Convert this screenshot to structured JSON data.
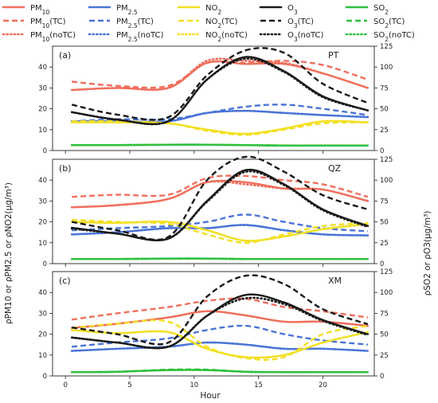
{
  "chart_data": {
    "type": "line",
    "xlabel": "Hour",
    "ylabel_left": "ρPM10 or ρPM2.5 or ρNO2(μg/m³)",
    "ylabel_right": "ρSO2 or ρO3(μg/m³)",
    "xticks": [
      0,
      5,
      10,
      15,
      20
    ],
    "xlim": [
      -1,
      24
    ],
    "left_ylim": [
      0,
      50
    ],
    "left_yticks": [
      0,
      10,
      20,
      30,
      40
    ],
    "right_ylim": [
      0,
      125
    ],
    "right_yticks": [
      0,
      25,
      50,
      75,
      100,
      125
    ],
    "grid": false,
    "legend": [
      {
        "label": "PM10",
        "pollutant": "PM10",
        "variant": "base"
      },
      {
        "label": "PM2.5",
        "pollutant": "PM25",
        "variant": "base"
      },
      {
        "label": "NO2",
        "pollutant": "NO2",
        "variant": "base"
      },
      {
        "label": "O3",
        "pollutant": "O3",
        "variant": "base"
      },
      {
        "label": "SO2",
        "pollutant": "SO2",
        "variant": "base"
      },
      {
        "label": "PM10(TC)",
        "pollutant": "PM10",
        "variant": "TC"
      },
      {
        "label": "PM2.5(TC)",
        "pollutant": "PM25",
        "variant": "TC"
      },
      {
        "label": "NO2(TC)",
        "pollutant": "NO2",
        "variant": "TC"
      },
      {
        "label": "O3(TC)",
        "pollutant": "O3",
        "variant": "TC"
      },
      {
        "label": "SO2(TC)",
        "pollutant": "SO2",
        "variant": "TC"
      },
      {
        "label": "PM10(noTC)",
        "pollutant": "PM10",
        "variant": "noTC"
      },
      {
        "label": "PM2.5(noTC)",
        "pollutant": "PM25",
        "variant": "noTC"
      },
      {
        "label": "NO2(noTC)",
        "pollutant": "NO2",
        "variant": "noTC"
      },
      {
        "label": "O3(noTC)",
        "pollutant": "O3",
        "variant": "noTC"
      },
      {
        "label": "SO2(noTC)",
        "pollutant": "SO2",
        "variant": "noTC"
      }
    ],
    "colors": {
      "PM10": "#ef6f5c",
      "PM25": "#4a74d6",
      "NO2": "#f2e024",
      "O3": "#1a1a1a",
      "SO2": "#2fbf3c"
    },
    "panels": [
      {
        "tag": "(a)",
        "site": "PT",
        "x": [
          0.5,
          4,
          8,
          11,
          14,
          17,
          20,
          23.5
        ],
        "series": {
          "PM10": {
            "base": [
              29,
              30,
              30,
              42,
              41.5,
              41.5,
              37,
              30
            ],
            "TC": [
              33,
              31,
              31,
              42,
              42,
              43,
              41,
              34
            ],
            "noTC": [
              29,
              30,
              30,
              43,
              43,
              42,
              37,
              30
            ]
          },
          "PM25": {
            "base": [
              14,
              14,
              14,
              18,
              19,
              18,
              17,
              16
            ],
            "TC": [
              14,
              15,
              15,
              18,
              21,
              22,
              20,
              17
            ],
            "noTC": [
              14,
              14,
              14,
              18,
              19,
              18,
              17,
              16
            ]
          },
          "NO2": {
            "base": [
              13.5,
              13.5,
              13,
              10,
              8,
              10.5,
              14,
              13.5
            ],
            "TC": [
              14,
              14,
              13,
              9.5,
              7.5,
              10,
              13,
              13.5
            ],
            "noTC": [
              13.5,
              13.5,
              13,
              10,
              8,
              10.5,
              14,
              13.5
            ]
          },
          "O3": {
            "base": [
              46,
              37,
              35,
              85,
              112,
              95,
              65,
              48
            ],
            "TC": [
              55,
              43,
              40,
              90,
              120,
              117,
              80,
              57
            ],
            "noTC": [
              46,
              37,
              35,
              85,
              110,
              94,
              64,
              48
            ]
          },
          "SO2": {
            "base": [
              6.5,
              6.5,
              7,
              7,
              6.5,
              6,
              6,
              6
            ],
            "TC": [
              6.5,
              6.5,
              7,
              7,
              6.5,
              6,
              6,
              6
            ],
            "noTC": [
              6.5,
              6.5,
              7,
              7,
              6.5,
              6,
              6,
              6
            ]
          }
        }
      },
      {
        "tag": "(b)",
        "site": "QZ",
        "x": [
          0.5,
          4,
          8,
          11,
          14,
          17,
          20,
          23.5
        ],
        "series": {
          "PM10": {
            "base": [
              27,
              28,
              31,
              39,
              39,
              36,
              35.5,
              30
            ],
            "TC": [
              32,
              33,
              33,
              41,
              42,
              40,
              38,
              32
            ],
            "noTC": [
              27,
              28,
              31,
              39,
              38,
              36,
              35.5,
              30
            ]
          },
          "PM25": {
            "base": [
              14,
              15,
              17,
              17,
              18.5,
              16,
              14,
              13.5
            ],
            "TC": [
              16,
              17,
              18,
              20,
              23.5,
              20,
              17,
              15.5
            ],
            "noTC": [
              14,
              15,
              17,
              17,
              18.5,
              16,
              14,
              13.5
            ]
          },
          "NO2": {
            "base": [
              20,
              19.5,
              20,
              16,
              11,
              13,
              16.5,
              19
            ],
            "TC": [
              21,
              20,
              19,
              14,
              10,
              14,
              18,
              19.5
            ],
            "noTC": [
              20,
              19.5,
              20,
              16,
              11,
              13,
              16.5,
              19
            ]
          },
          "O3": {
            "base": [
              43,
              36,
              30,
              75,
              112,
              95,
              65,
              45
            ],
            "TC": [
              50,
              40,
              32,
              100,
              128,
              110,
              82,
              65
            ],
            "noTC": [
              42,
              36,
              30,
              74,
              110,
              94,
              64,
              44
            ]
          },
          "SO2": {
            "base": [
              5.5,
              5.5,
              6,
              6,
              5.5,
              5.5,
              5.5,
              5.5
            ],
            "TC": [
              5.5,
              5.5,
              6,
              6,
              5.5,
              5.5,
              5.5,
              5.5
            ],
            "noTC": [
              5.5,
              5.5,
              6,
              6,
              5.5,
              5.5,
              5.5,
              5.5
            ]
          }
        }
      },
      {
        "tag": "(c)",
        "site": "XM",
        "x": [
          0.5,
          4,
          8,
          11,
          14,
          17,
          20,
          23.5
        ],
        "series": {
          "PM10": {
            "base": [
              23,
              25,
              28,
              31,
              29,
              26,
              26,
              24
            ],
            "TC": [
              27,
              30,
              33,
              36,
              37,
              33,
              31,
              28
            ],
            "noTC": [
              23,
              25,
              28,
              31,
              29,
              26,
              26,
              24
            ]
          },
          "PM25": {
            "base": [
              12,
              13,
              14,
              16,
              15,
              13,
              13,
              12
            ],
            "TC": [
              14,
              16,
              18,
              22,
              24,
              20,
              17,
              15
            ],
            "noTC": [
              12,
              13,
              14,
              16,
              15,
              13,
              13,
              12
            ]
          },
          "NO2": {
            "base": [
              22,
              20.5,
              21,
              13,
              9,
              10,
              16,
              21
            ],
            "TC": [
              23,
              25,
              26,
              14,
              8.5,
              9,
              20,
              24
            ],
            "noTC": [
              22,
              20.5,
              21,
              13,
              9,
              10,
              16,
              21
            ]
          },
          "O3": {
            "base": [
              46,
              40,
              35,
              72,
              97,
              88,
              67,
              50
            ],
            "TC": [
              58,
              50,
              40,
              95,
              120,
              110,
              80,
              62
            ],
            "noTC": [
              46,
              40,
              35,
              72,
              93,
              86,
              66,
              49
            ]
          },
          "SO2": {
            "base": [
              4.5,
              5,
              7,
              7,
              5,
              4.5,
              4.5,
              4.5
            ],
            "TC": [
              4.5,
              5,
              7.5,
              7.5,
              5,
              4.5,
              4.5,
              4.5
            ],
            "noTC": [
              4.5,
              5,
              7,
              7,
              5,
              4.5,
              4.5,
              4.5
            ]
          }
        }
      }
    ]
  }
}
